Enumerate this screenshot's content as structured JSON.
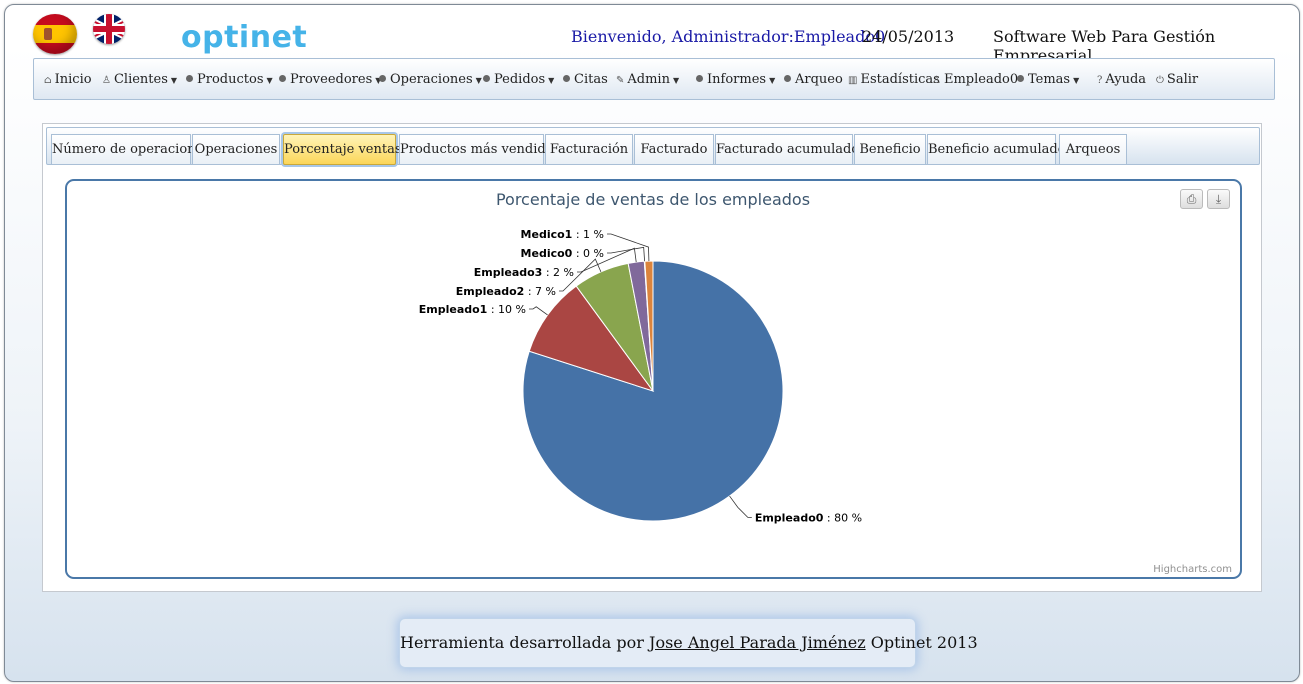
{
  "header": {
    "logo": "optinet",
    "welcome": "Bienvenido, Administrador:Empleado0",
    "date": "24/05/2013",
    "tagline": "Software Web Para Gestión Empresarial."
  },
  "menu": {
    "inicio": "Inicio",
    "clientes": "Clientes",
    "productos": "Productos",
    "proveedores": "Proveedores",
    "operaciones": "Operaciones",
    "pedidos": "Pedidos",
    "citas": "Citas",
    "admin": "Admin",
    "informes": "Informes",
    "arqueo": "Arqueo",
    "estadisticas": "Estadísticas",
    "usuario": "Empleado0",
    "temas": "Temas",
    "ayuda": "Ayuda",
    "salir": "Salir"
  },
  "tabs": [
    "Número de operaciones",
    "Operaciones",
    "Porcentaje ventas",
    "Productos más vendidos",
    "Facturación",
    "Facturado",
    "Facturado acumulado",
    "Beneficio",
    "Beneficio acumulado",
    "Arqueos"
  ],
  "active_tab": "Porcentaje ventas",
  "chart_data": {
    "type": "pie",
    "title": "Porcentaje de ventas de los empleados",
    "slices": [
      {
        "name": "Empleado0",
        "value": 80,
        "label": "80 %",
        "color": "#4572a7"
      },
      {
        "name": "Empleado1",
        "value": 10,
        "label": "10 %",
        "color": "#aa4643"
      },
      {
        "name": "Empleado2",
        "value": 7,
        "label": "7 %",
        "color": "#89a54e"
      },
      {
        "name": "Empleado3",
        "value": 2,
        "label": "2 %",
        "color": "#80699b"
      },
      {
        "name": "Medico0",
        "value": 0,
        "label": "0 %",
        "color": "#3d96ae"
      },
      {
        "name": "Medico1",
        "value": 1,
        "label": "1 %",
        "color": "#db843d"
      }
    ]
  },
  "chart_ui": {
    "print_icon": "print-icon",
    "export_icon": "download-icon",
    "credits": "Highcharts.com"
  },
  "footer": {
    "prefix": "Herramienta desarrollada por",
    "author": "Jose Angel Parada Jiménez",
    "suffix": "Optinet 2013"
  }
}
